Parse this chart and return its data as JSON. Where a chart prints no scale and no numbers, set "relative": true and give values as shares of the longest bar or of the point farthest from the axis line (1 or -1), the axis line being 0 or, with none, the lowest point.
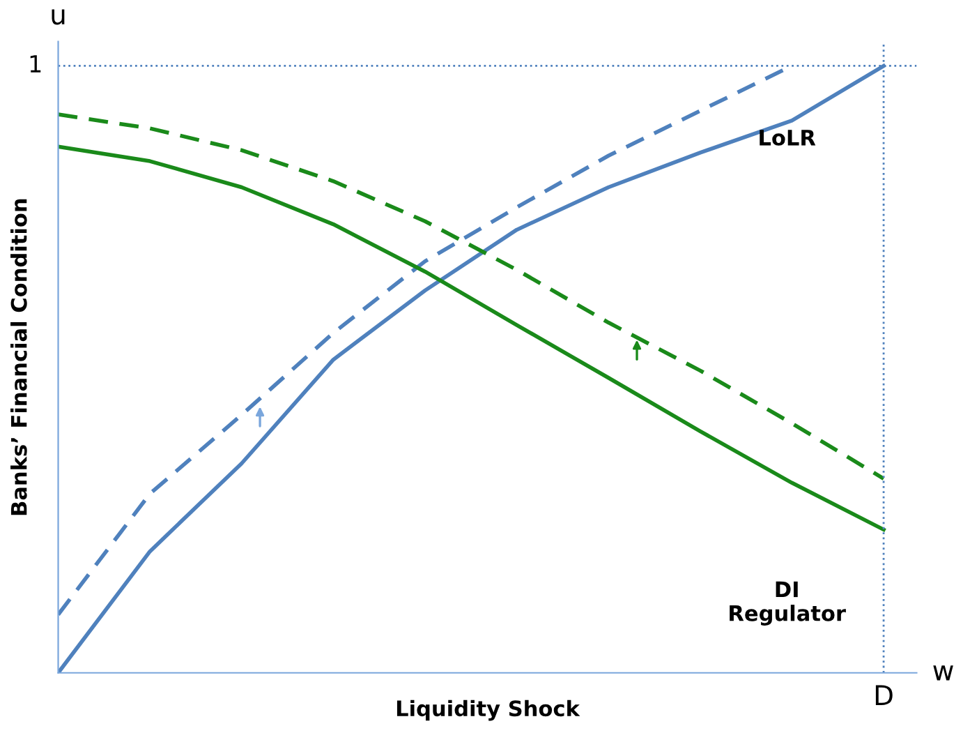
{
  "chart_data": {
    "type": "line",
    "relative": true,
    "xlabel": "Liquidity Shock",
    "ylabel": "Banks’ Financial Condition",
    "annotations": [
      "u",
      "w"
    ],
    "categories": [
      null,
      null,
      null,
      null,
      null,
      null,
      null,
      null,
      null,
      null
    ],
    "ref_lines": [
      {
        "axis": "y",
        "value": 1,
        "label": "1",
        "color": "#4f81bd",
        "line_style": "dotted"
      },
      {
        "axis": "x",
        "label": "D",
        "color": "#4f81bd",
        "line_style": "dotted"
      }
    ],
    "series": [
      {
        "color": "#4f81bd",
        "line_style": "dashed",
        "values": [
          0.096,
          0.295,
          0.425,
          0.56,
          0.678,
          0.767,
          0.852,
          0.926,
          1.0,
          null
        ]
      },
      {
        "name": "LoLR",
        "color": "#4f81bd",
        "line_style": "solid",
        "values": [
          0,
          0.2,
          0.345,
          0.516,
          0.63,
          0.73,
          0.8,
          0.857,
          0.91,
          1.0
        ]
      },
      {
        "color": "#1a8a1a",
        "line_style": "dashed",
        "values": [
          0.92,
          0.897,
          0.861,
          0.81,
          0.744,
          0.664,
          0.577,
          0.498,
          0.411,
          0.32
        ]
      },
      {
        "name": "DI\nRegulator",
        "color": "#1a8a1a",
        "line_style": "solid",
        "values": [
          0.867,
          0.843,
          0.8,
          0.739,
          0.661,
          0.573,
          0.486,
          0.398,
          0.313,
          0.236
        ]
      }
    ]
  }
}
